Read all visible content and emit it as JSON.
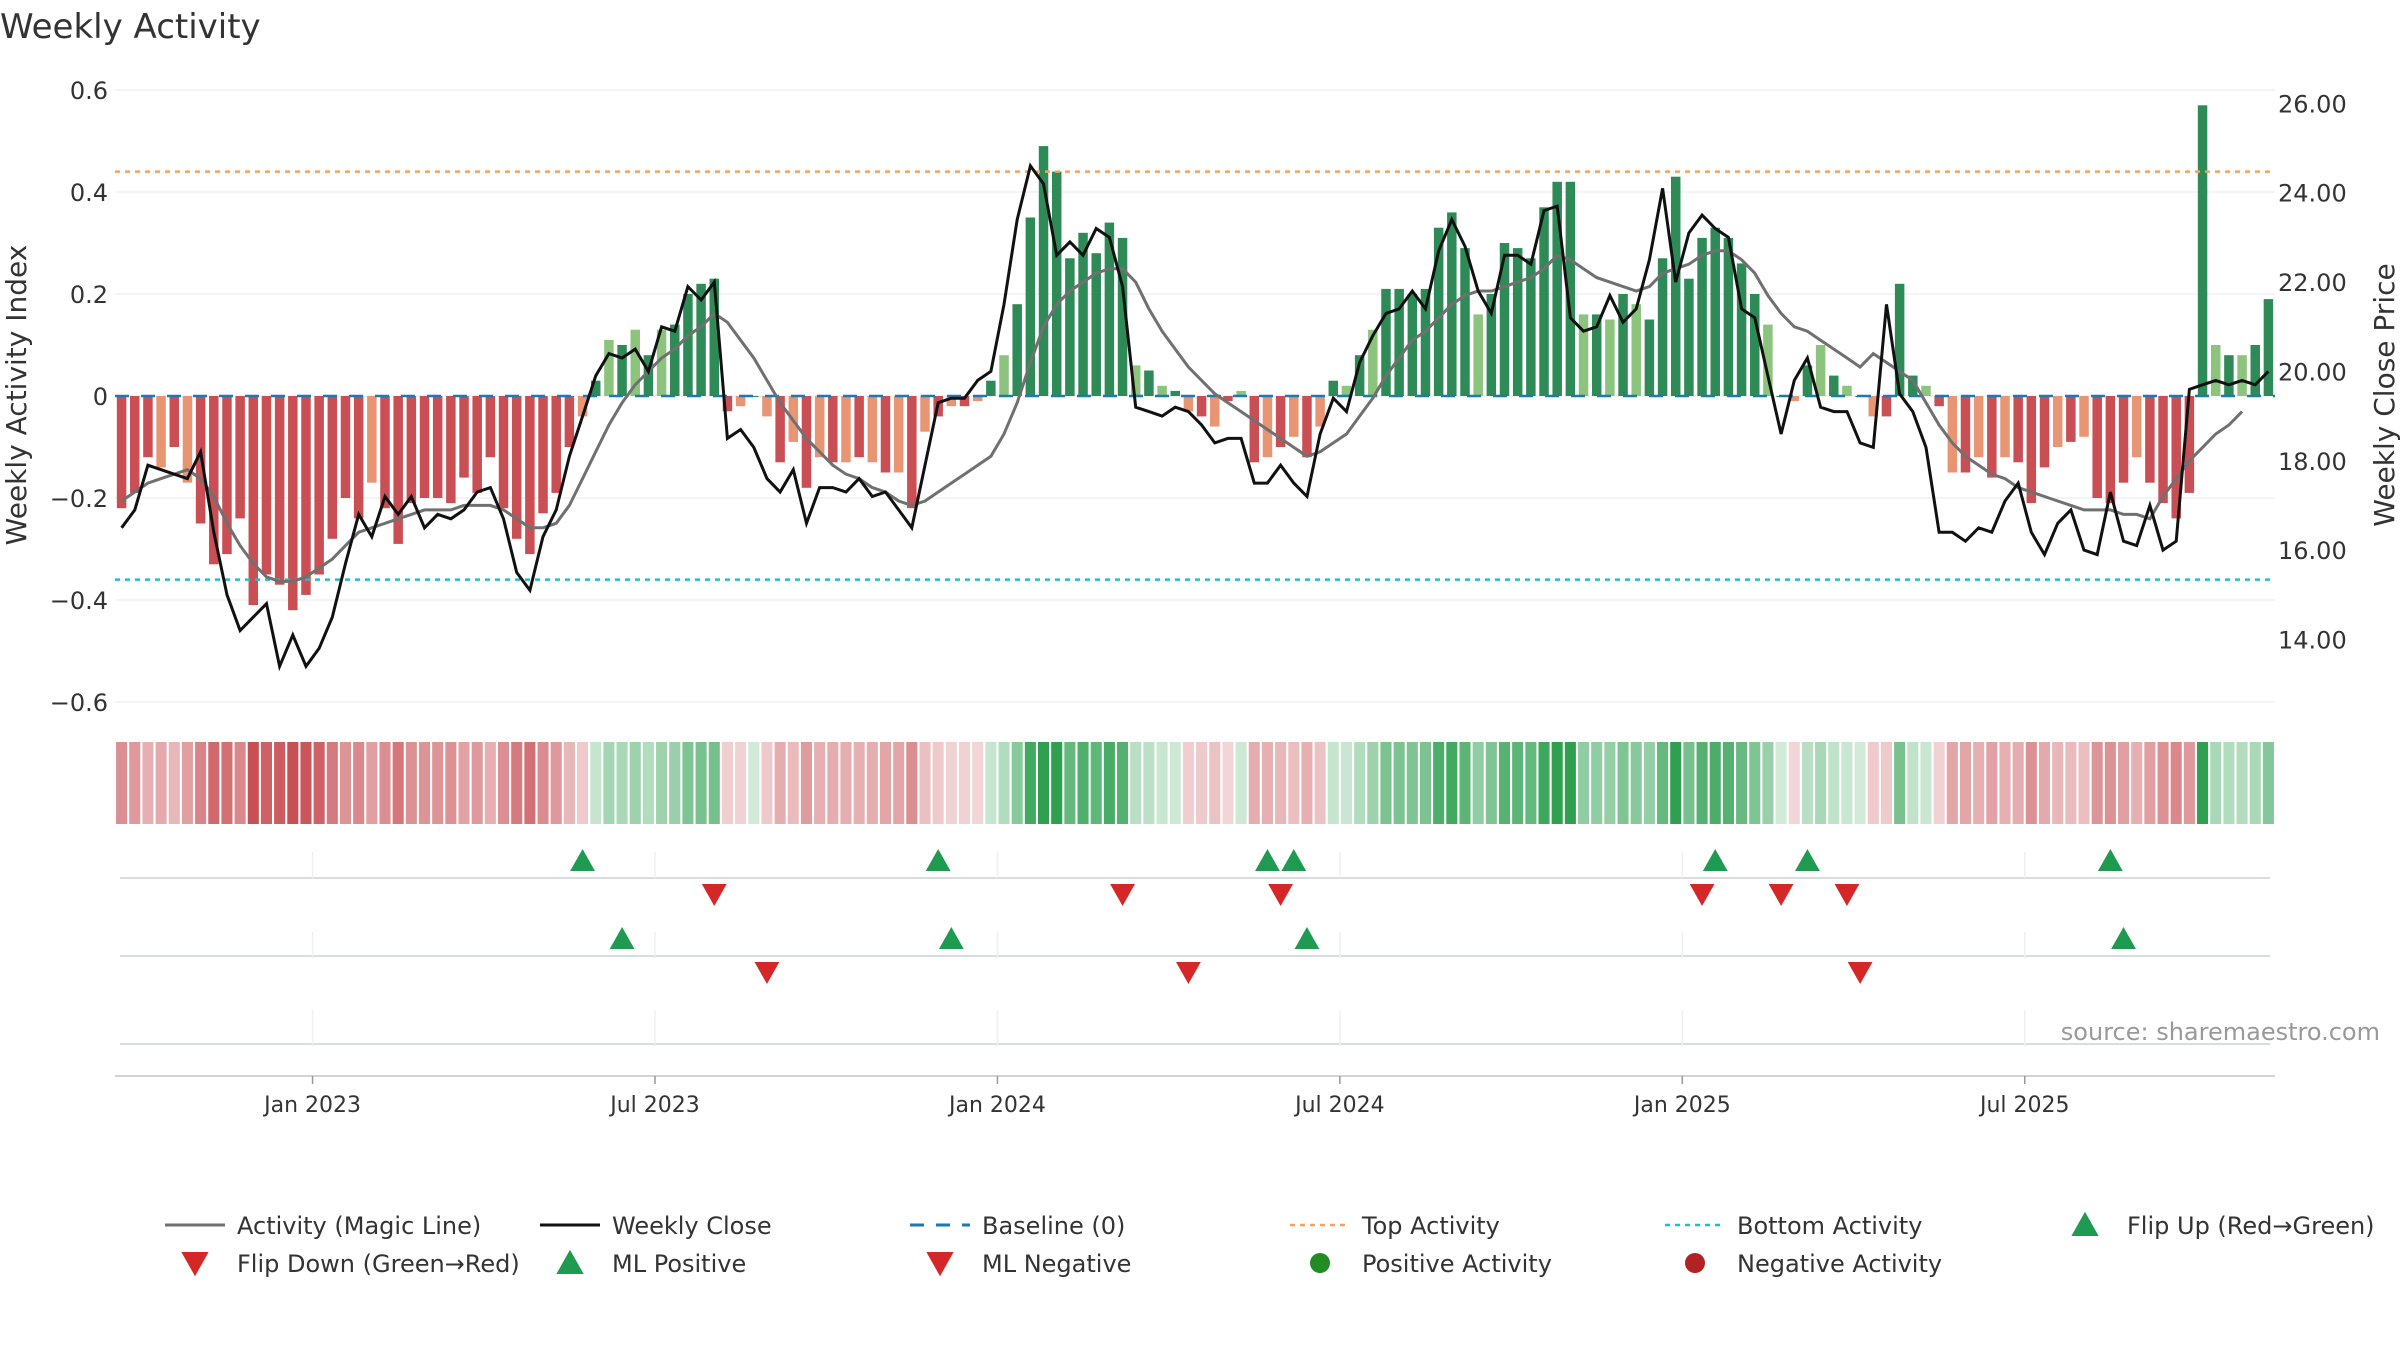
{
  "title": "Weekly Activity",
  "source": "source: sharemaestro.com",
  "chart_data": {
    "type": "bar",
    "title": "Weekly Activity",
    "ylabel_left": "Weekly Activity Index",
    "ylabel_right": "Weekly Close Price",
    "ylim_left": [
      -0.6,
      0.6
    ],
    "ylim_right": [
      12.6,
      26.3
    ],
    "yticks_left": [
      {
        "v": 0.6,
        "label": "0.6"
      },
      {
        "v": 0.4,
        "label": "0.4"
      },
      {
        "v": 0.2,
        "label": "0.2"
      },
      {
        "v": 0,
        "label": "0"
      },
      {
        "v": -0.2,
        "label": "−0.2"
      },
      {
        "v": -0.4,
        "label": "−0.4"
      },
      {
        "v": -0.6,
        "label": "−0.6"
      }
    ],
    "yticks_right": [
      {
        "v": 26,
        "label": "26.00"
      },
      {
        "v": 24,
        "label": "24.00"
      },
      {
        "v": 22,
        "label": "22.00"
      },
      {
        "v": 20,
        "label": "20.00"
      },
      {
        "v": 18,
        "label": "18.00"
      },
      {
        "v": 16,
        "label": "16.00"
      },
      {
        "v": 14,
        "label": "14.00"
      }
    ],
    "xticks": [
      {
        "week": 15,
        "label": "Jan 2023"
      },
      {
        "week": 41,
        "label": "Jul 2023"
      },
      {
        "week": 67,
        "label": "Jan 2024"
      },
      {
        "week": 93,
        "label": "Jul 2024"
      },
      {
        "week": 119,
        "label": "Jan 2025"
      },
      {
        "week": 145,
        "label": "Jul 2025"
      }
    ],
    "top_activity": 0.44,
    "bottom_activity": -0.36,
    "activity": [
      -0.22,
      -0.19,
      -0.12,
      -0.14,
      -0.1,
      -0.17,
      -0.25,
      -0.33,
      -0.31,
      -0.24,
      -0.41,
      -0.35,
      -0.37,
      -0.42,
      -0.39,
      -0.35,
      -0.28,
      -0.2,
      -0.24,
      -0.17,
      -0.22,
      -0.29,
      -0.21,
      -0.2,
      -0.2,
      -0.21,
      -0.16,
      -0.19,
      -0.12,
      -0.22,
      -0.28,
      -0.31,
      -0.23,
      -0.19,
      -0.1,
      -0.04,
      0.03,
      0.11,
      0.1,
      0.13,
      0.08,
      0.13,
      0.14,
      0.2,
      0.22,
      0.23,
      -0.03,
      -0.02,
      0.0,
      -0.04,
      -0.13,
      -0.09,
      -0.18,
      -0.12,
      -0.13,
      -0.13,
      -0.12,
      -0.13,
      -0.15,
      -0.15,
      -0.22,
      -0.07,
      -0.04,
      -0.02,
      -0.02,
      -0.01,
      0.03,
      0.08,
      0.18,
      0.35,
      0.49,
      0.44,
      0.27,
      0.32,
      0.28,
      0.34,
      0.31,
      0.06,
      0.05,
      0.02,
      0.01,
      -0.03,
      -0.04,
      -0.06,
      -0.01,
      0.01,
      -0.13,
      -0.12,
      -0.1,
      -0.08,
      -0.12,
      -0.06,
      0.03,
      0.02,
      0.08,
      0.13,
      0.21,
      0.21,
      0.2,
      0.21,
      0.33,
      0.36,
      0.29,
      0.16,
      0.2,
      0.3,
      0.29,
      0.27,
      0.37,
      0.42,
      0.42,
      0.16,
      0.16,
      0.15,
      0.2,
      0.18,
      0.15,
      0.27,
      0.43,
      0.23,
      0.31,
      0.33,
      0.31,
      0.26,
      0.2,
      0.14,
      0.0,
      -0.01,
      0.06,
      0.1,
      0.04,
      0.02,
      0.0,
      -0.04,
      -0.04,
      0.22,
      0.04,
      0.02,
      -0.02,
      -0.15,
      -0.15,
      -0.12,
      -0.16,
      -0.12,
      -0.13,
      -0.21,
      -0.14,
      -0.1,
      -0.09,
      -0.08,
      -0.2,
      -0.21,
      -0.17,
      -0.12,
      -0.17,
      -0.21,
      -0.24,
      -0.19,
      0.57,
      0.1,
      0.08,
      0.08,
      0.1,
      0.19
    ],
    "weekly_close": [
      16.5,
      16.9,
      17.9,
      17.8,
      17.7,
      17.6,
      18.2,
      16.4,
      15.0,
      14.2,
      14.5,
      14.8,
      13.4,
      14.1,
      13.4,
      13.8,
      14.5,
      15.7,
      16.8,
      16.3,
      17.2,
      16.8,
      17.2,
      16.5,
      16.8,
      16.7,
      16.9,
      17.3,
      17.4,
      16.7,
      15.5,
      15.1,
      16.3,
      16.9,
      18.1,
      19.0,
      19.9,
      20.4,
      20.3,
      20.5,
      20.0,
      21.0,
      20.9,
      21.9,
      21.6,
      22.0,
      18.5,
      18.7,
      18.3,
      17.6,
      17.3,
      17.8,
      16.6,
      17.4,
      17.4,
      17.3,
      17.6,
      17.2,
      17.3,
      16.9,
      16.5,
      17.9,
      19.3,
      19.4,
      19.4,
      19.8,
      20.0,
      21.5,
      23.4,
      24.6,
      24.2,
      22.6,
      22.9,
      22.6,
      23.2,
      23.0,
      21.9,
      19.2,
      19.1,
      19.0,
      19.2,
      19.1,
      18.8,
      18.4,
      18.5,
      18.5,
      17.5,
      17.5,
      17.9,
      17.5,
      17.2,
      18.6,
      19.4,
      19.1,
      20.2,
      20.8,
      21.3,
      21.4,
      21.8,
      21.4,
      22.7,
      23.4,
      22.8,
      21.8,
      21.3,
      22.6,
      22.6,
      22.4,
      23.6,
      23.7,
      21.2,
      20.9,
      21.0,
      21.7,
      21.1,
      21.4,
      22.5,
      24.1,
      22.0,
      23.1,
      23.5,
      23.2,
      23.0,
      21.4,
      21.2,
      19.9,
      18.6,
      19.8,
      20.3,
      19.2,
      19.1,
      19.1,
      18.4,
      18.3,
      21.5,
      19.5,
      19.1,
      18.3,
      16.4,
      16.4,
      16.2,
      16.5,
      16.4,
      17.1,
      17.5,
      16.4,
      15.9,
      16.6,
      16.9,
      16.0,
      15.9,
      17.3,
      16.2,
      16.1,
      17.0,
      16.0,
      16.2,
      19.6,
      19.7,
      19.8,
      19.7,
      19.8,
      19.7,
      20.0
    ],
    "magic_line": [
      17.1,
      17.3,
      17.5,
      17.6,
      17.7,
      17.8,
      17.6,
      17.2,
      16.6,
      16.1,
      15.7,
      15.4,
      15.3,
      15.3,
      15.4,
      15.6,
      15.8,
      16.1,
      16.4,
      16.5,
      16.6,
      16.7,
      16.8,
      16.9,
      16.9,
      16.9,
      17.0,
      17.0,
      17.0,
      16.9,
      16.7,
      16.5,
      16.5,
      16.6,
      17.0,
      17.6,
      18.2,
      18.8,
      19.3,
      19.7,
      20.0,
      20.3,
      20.5,
      20.8,
      21.0,
      21.3,
      21.1,
      20.7,
      20.3,
      19.8,
      19.3,
      18.9,
      18.5,
      18.2,
      17.9,
      17.7,
      17.6,
      17.4,
      17.3,
      17.1,
      17.0,
      17.1,
      17.3,
      17.5,
      17.7,
      17.9,
      18.1,
      18.6,
      19.3,
      20.2,
      21.0,
      21.5,
      21.8,
      22.0,
      22.2,
      22.3,
      22.3,
      22.0,
      21.4,
      20.9,
      20.5,
      20.1,
      19.8,
      19.5,
      19.3,
      19.1,
      18.9,
      18.7,
      18.5,
      18.3,
      18.1,
      18.2,
      18.4,
      18.6,
      19.0,
      19.4,
      19.9,
      20.3,
      20.7,
      20.9,
      21.2,
      21.5,
      21.7,
      21.8,
      21.8,
      21.9,
      22.0,
      22.1,
      22.3,
      22.6,
      22.5,
      22.3,
      22.1,
      22.0,
      21.9,
      21.8,
      21.9,
      22.2,
      22.3,
      22.4,
      22.6,
      22.7,
      22.7,
      22.5,
      22.2,
      21.7,
      21.3,
      21.0,
      20.9,
      20.7,
      20.5,
      20.3,
      20.1,
      20.4,
      20.2,
      20.0,
      19.8,
      19.3,
      18.8,
      18.4,
      18.1,
      17.9,
      17.7,
      17.6,
      17.4,
      17.3,
      17.2,
      17.1,
      17.0,
      16.9,
      16.9,
      16.9,
      16.8,
      16.8,
      16.7,
      17.2,
      17.6,
      18.0,
      18.3,
      18.6,
      18.8,
      19.1
    ],
    "flip_up": [
      35,
      62,
      87,
      89,
      121,
      128,
      151
    ],
    "flip_down": [
      45,
      76,
      88,
      120,
      126,
      131
    ],
    "ml_positive": [
      38,
      63,
      90,
      152
    ],
    "ml_negative": [
      49,
      81,
      132
    ],
    "legend": [
      {
        "key": "magic",
        "label": "Activity (Magic Line)"
      },
      {
        "key": "close",
        "label": "Weekly Close"
      },
      {
        "key": "baseline",
        "label": "Baseline (0)"
      },
      {
        "key": "top",
        "label": "Top Activity"
      },
      {
        "key": "bottom",
        "label": "Bottom Activity"
      },
      {
        "key": "flipup",
        "label": "Flip Up (Red→Green)"
      },
      {
        "key": "flipdown",
        "label": "Flip Down (Green→Red)"
      },
      {
        "key": "mlpos",
        "label": "ML Positive"
      },
      {
        "key": "mlneg",
        "label": "ML Negative"
      },
      {
        "key": "posact",
        "label": "Positive Activity"
      },
      {
        "key": "negact",
        "label": "Negative Activity"
      }
    ]
  },
  "colors": {
    "pos_strong": "#2e8b57",
    "pos_light": "#8cc47e",
    "neg_strong": "#c94f55",
    "neg_light": "#e89574",
    "magic": "#707070",
    "close": "#111111",
    "baseline": "#1f77b4",
    "top": "#f4a261",
    "bottom": "#17c3cf",
    "up": "#1e9b50",
    "down": "#d62728",
    "pos_dot": "#228b22",
    "neg_dot": "#b22222"
  }
}
